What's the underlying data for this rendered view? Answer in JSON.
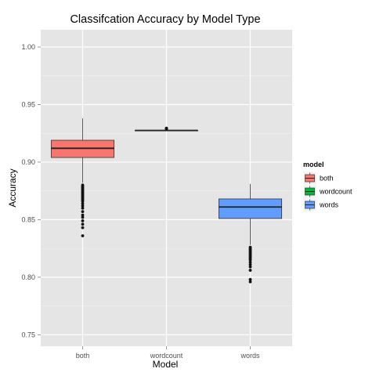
{
  "chart_data": {
    "type": "boxplot",
    "title": "Classifcation Accuracy by Model Type",
    "xlabel": "Model",
    "ylabel": "Accuracy",
    "ylim": [
      0.74,
      1.015
    ],
    "yticks": [
      "0.75",
      "0.80",
      "0.85",
      "0.90",
      "0.95",
      "1.00"
    ],
    "categories": [
      "both",
      "wordcount",
      "words"
    ],
    "grid": true,
    "legend": {
      "title": "model",
      "placement": "right",
      "entries": [
        "both",
        "wordcount",
        "words"
      ]
    },
    "series": [
      {
        "category": "both",
        "color": "#F8766D",
        "min": 0.882,
        "q1": 0.904,
        "median": 0.912,
        "q3": 0.919,
        "max": 0.938,
        "outliers": [
          0.88,
          0.879,
          0.878,
          0.877,
          0.876,
          0.875,
          0.874,
          0.873,
          0.872,
          0.871,
          0.87,
          0.869,
          0.868,
          0.867,
          0.866,
          0.864,
          0.862,
          0.86,
          0.857,
          0.854,
          0.852,
          0.849,
          0.846,
          0.843,
          0.836
        ]
      },
      {
        "category": "wordcount",
        "color": "#00BA38",
        "min": 0.9275,
        "q1": 0.9275,
        "median": 0.9275,
        "q3": 0.9275,
        "max": 0.9275,
        "outliers": [
          0.9295,
          0.929,
          0.9288
        ]
      },
      {
        "category": "words",
        "color": "#619CFF",
        "min": 0.828,
        "q1": 0.851,
        "median": 0.861,
        "q3": 0.868,
        "max": 0.881,
        "outliers": [
          0.826,
          0.825,
          0.824,
          0.823,
          0.822,
          0.821,
          0.82,
          0.819,
          0.818,
          0.817,
          0.816,
          0.815,
          0.813,
          0.811,
          0.809,
          0.806,
          0.798,
          0.796
        ]
      }
    ]
  }
}
